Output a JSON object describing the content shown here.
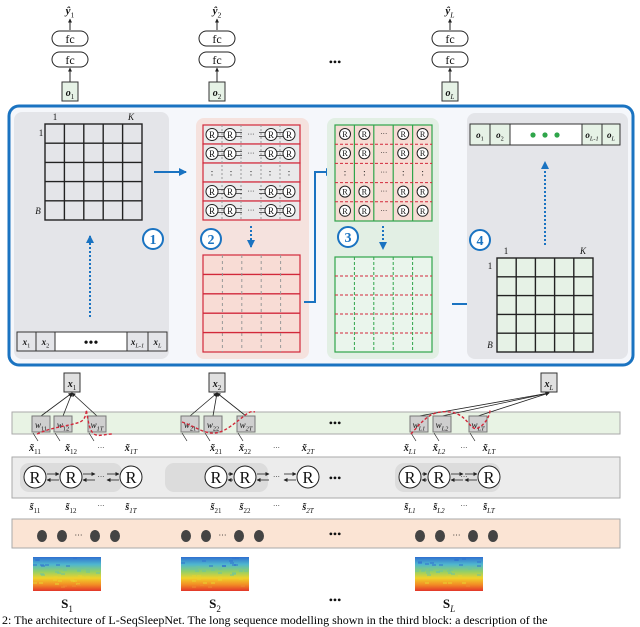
{
  "colors": {
    "frame_blue": "#1a73c1",
    "panel_gray": "#e4e5e9",
    "panel_pink": "#f5e2de",
    "panel_green": "#e2efe4",
    "cell_green": "#e6f2e6",
    "red_line": "#d2283a",
    "green_line": "#2fa54a",
    "band_green": "#e8f3e4",
    "band_gray": "#ececec",
    "band_orange": "#fbe4d4"
  },
  "heads": [
    {
      "yhat": [
        "ŷ",
        "1"
      ],
      "fc": [
        "fc",
        "fc"
      ],
      "o": [
        "o",
        "1"
      ]
    },
    {
      "yhat": [
        "ŷ",
        "2"
      ],
      "fc": [
        "fc",
        "fc"
      ],
      "o": [
        "o",
        "2"
      ]
    },
    {
      "yhat": [
        "ŷ",
        "L"
      ],
      "fc": [
        "fc",
        "fc"
      ],
      "o": [
        "o",
        "L"
      ]
    }
  ],
  "ellipsis": "•••",
  "small_ellipsis": "···",
  "steps": [
    "1",
    "2",
    "3",
    "4"
  ],
  "grid_labels": {
    "col_first": "1",
    "col_last": "K",
    "row_first": "1",
    "row_last": "B"
  },
  "input_row": [
    [
      "x",
      "1"
    ],
    [
      "x",
      "2"
    ],
    [
      "x",
      "L-1"
    ],
    [
      "x",
      "L"
    ]
  ],
  "output_row": [
    [
      "o",
      "1"
    ],
    [
      "o",
      "2"
    ],
    [
      "o",
      "L-1"
    ],
    [
      "o",
      "L"
    ]
  ],
  "rnn_cell": "R",
  "epochs": [
    {
      "x": [
        "x",
        "1"
      ],
      "w": [
        [
          "w",
          "11"
        ],
        [
          "w",
          "12"
        ],
        [
          "w",
          "1T"
        ]
      ],
      "xt": [
        [
          "x̃",
          "11"
        ],
        [
          "x̃",
          "12"
        ],
        [
          "x̃",
          "1T"
        ]
      ],
      "st": [
        [
          "s̃",
          "11"
        ],
        [
          "s̃",
          "12"
        ],
        [
          "s̃",
          "1T"
        ]
      ],
      "S": [
        "S",
        "1"
      ]
    },
    {
      "x": [
        "x",
        "2"
      ],
      "w": [
        [
          "w",
          "21"
        ],
        [
          "w",
          "22"
        ],
        [
          "w",
          "2T"
        ]
      ],
      "xt": [
        [
          "x̃",
          "21"
        ],
        [
          "x̃",
          "22"
        ],
        [
          "x̃",
          "2T"
        ]
      ],
      "st": [
        [
          "s̃",
          "21"
        ],
        [
          "s̃",
          "22"
        ],
        [
          "s̃",
          "2T"
        ]
      ],
      "S": [
        "S",
        "2"
      ]
    },
    {
      "x": [
        "x",
        "L"
      ],
      "w": [
        [
          "w",
          "L1"
        ],
        [
          "w",
          "L2"
        ],
        [
          "w",
          "LT"
        ]
      ],
      "xt": [
        [
          "x̃",
          "L1"
        ],
        [
          "x̃",
          "L2"
        ],
        [
          "x̃",
          "LT"
        ]
      ],
      "st": [
        [
          "s̃",
          "L1"
        ],
        [
          "s̃",
          "L2"
        ],
        [
          "s̃",
          "LT"
        ]
      ],
      "S": [
        "S",
        "L"
      ]
    }
  ],
  "caption": "2: The architecture of L-SeqSleepNet. The long sequence modelling shown in the third block: a description of the"
}
